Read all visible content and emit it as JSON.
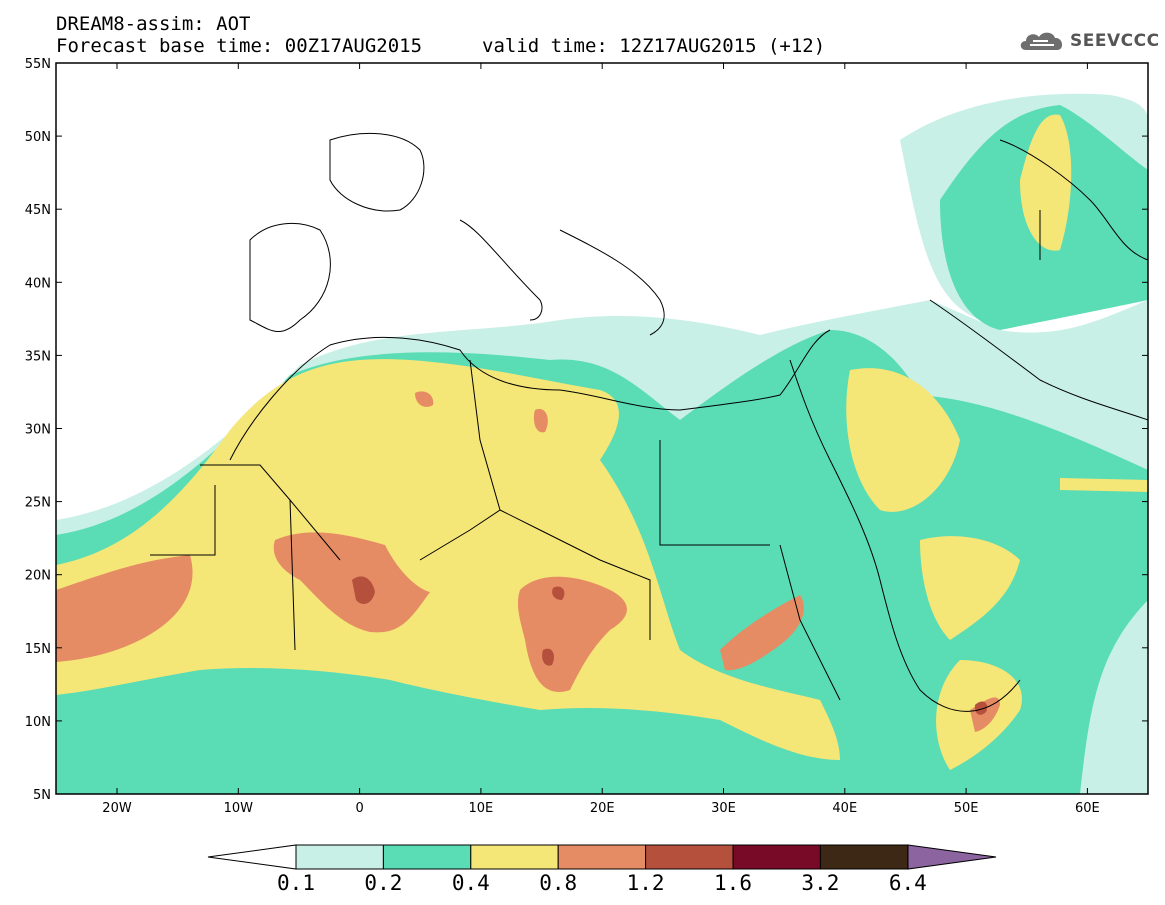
{
  "header": {
    "line1": "DREAM8-assim: AOT",
    "line2": "Forecast base time: 00Z17AUG2015",
    "valid": "valid time: 12Z17AUG2015 (+12)"
  },
  "logo": {
    "text": "SEEVCCC",
    "icon": "cloud-icon"
  },
  "axes": {
    "lat_labels": [
      "55N",
      "50N",
      "45N",
      "40N",
      "35N",
      "30N",
      "25N",
      "20N",
      "15N",
      "10N",
      "5N"
    ],
    "lon_labels": [
      "20W",
      "10W",
      "0",
      "10E",
      "20E",
      "30E",
      "40E",
      "50E",
      "60E"
    ]
  },
  "legend": {
    "thresholds": [
      "0.1",
      "0.2",
      "0.4",
      "0.8",
      "1.2",
      "1.6",
      "3.2",
      "6.4"
    ],
    "colors": [
      "#c8f0e6",
      "#5adcb4",
      "#f5e678",
      "#e68c64",
      "#b4503c",
      "#780a28",
      "#3c2814",
      "#8c64a0"
    ]
  },
  "colors": {
    "c1": "#c8f0e6",
    "c2": "#5adcb4",
    "c3": "#f5e678",
    "c4": "#e68c64",
    "c5": "#b4503c",
    "c6": "#780a28"
  }
}
